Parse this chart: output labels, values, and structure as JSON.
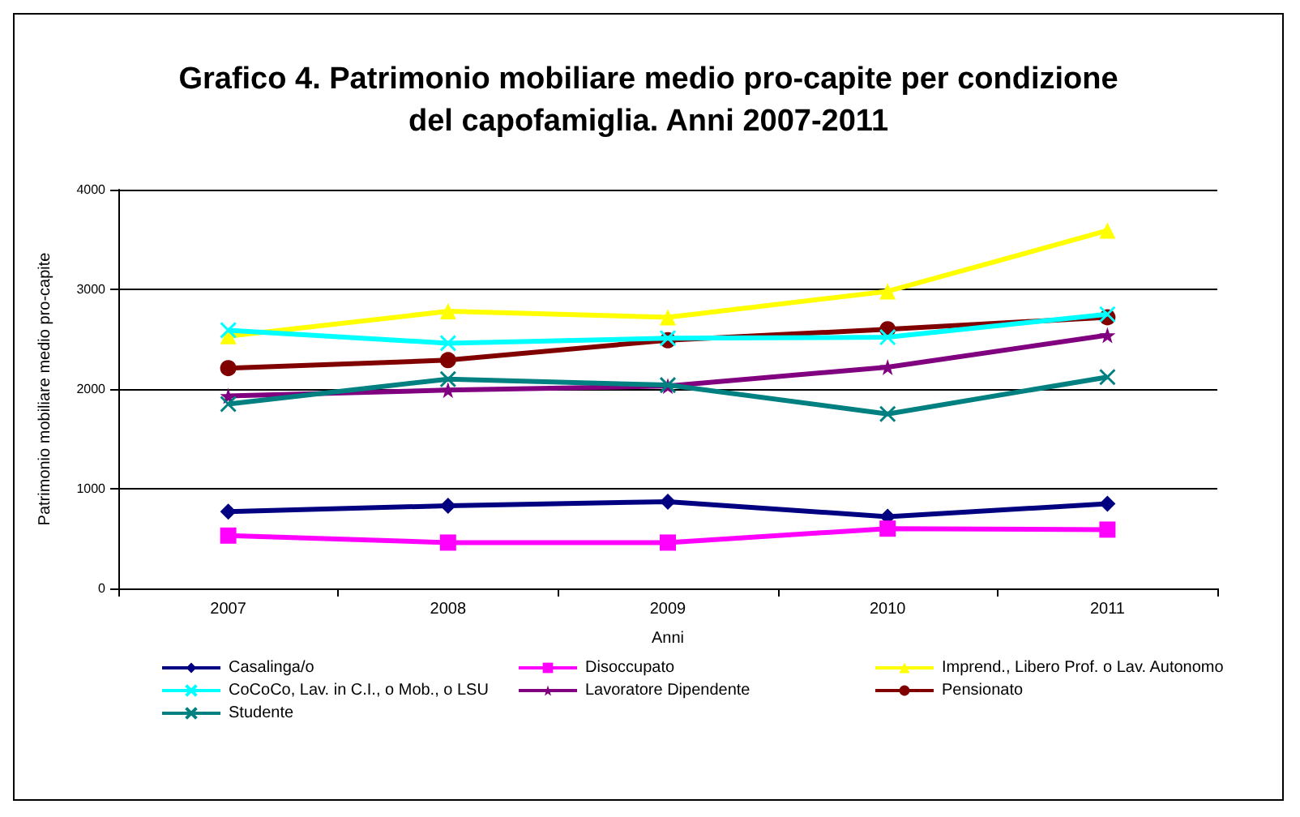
{
  "chart_data": {
    "type": "line",
    "title": "Grafico 4. Patrimonio mobiliare medio pro-capite per condizione\ndel capofamiglia. Anni 2007-2011",
    "xlabel": "Anni",
    "ylabel": "Patrimonio mobiliare medio pro-capite",
    "categories": [
      "2007",
      "2008",
      "2009",
      "2010",
      "2011"
    ],
    "series": [
      {
        "name": "Casalinga/o",
        "color": "#000080",
        "marker": "diamond",
        "values": [
          770,
          830,
          870,
          720,
          850
        ]
      },
      {
        "name": "Disoccupato",
        "color": "#ff00ff",
        "marker": "square",
        "values": [
          530,
          460,
          460,
          600,
          590
        ]
      },
      {
        "name": "Imprend., Libero Prof. o Lav. Autonomo",
        "color": "#ffff00",
        "marker": "triangle",
        "values": [
          2530,
          2780,
          2720,
          2980,
          3590
        ]
      },
      {
        "name": "CoCoCo, Lav. in C.I., o Mob., o LSU",
        "color": "#00ffff",
        "marker": "cross",
        "values": [
          2590,
          2460,
          2510,
          2520,
          2750
        ]
      },
      {
        "name": "Lavoratore Dipendente",
        "color": "#800080",
        "marker": "star",
        "values": [
          1930,
          1990,
          2030,
          2220,
          2540
        ]
      },
      {
        "name": "Pensionato",
        "color": "#800000",
        "marker": "circle",
        "values": [
          2210,
          2290,
          2490,
          2600,
          2720
        ]
      },
      {
        "name": "Studente",
        "color": "#008080",
        "marker": "cross",
        "values": [
          1850,
          2100,
          2040,
          1750,
          2120
        ]
      }
    ],
    "ylim": [
      0,
      4000
    ],
    "yticks": [
      0,
      1000,
      2000,
      3000,
      4000
    ],
    "grid": "y",
    "legend": "bottom",
    "line_style": "solid"
  }
}
